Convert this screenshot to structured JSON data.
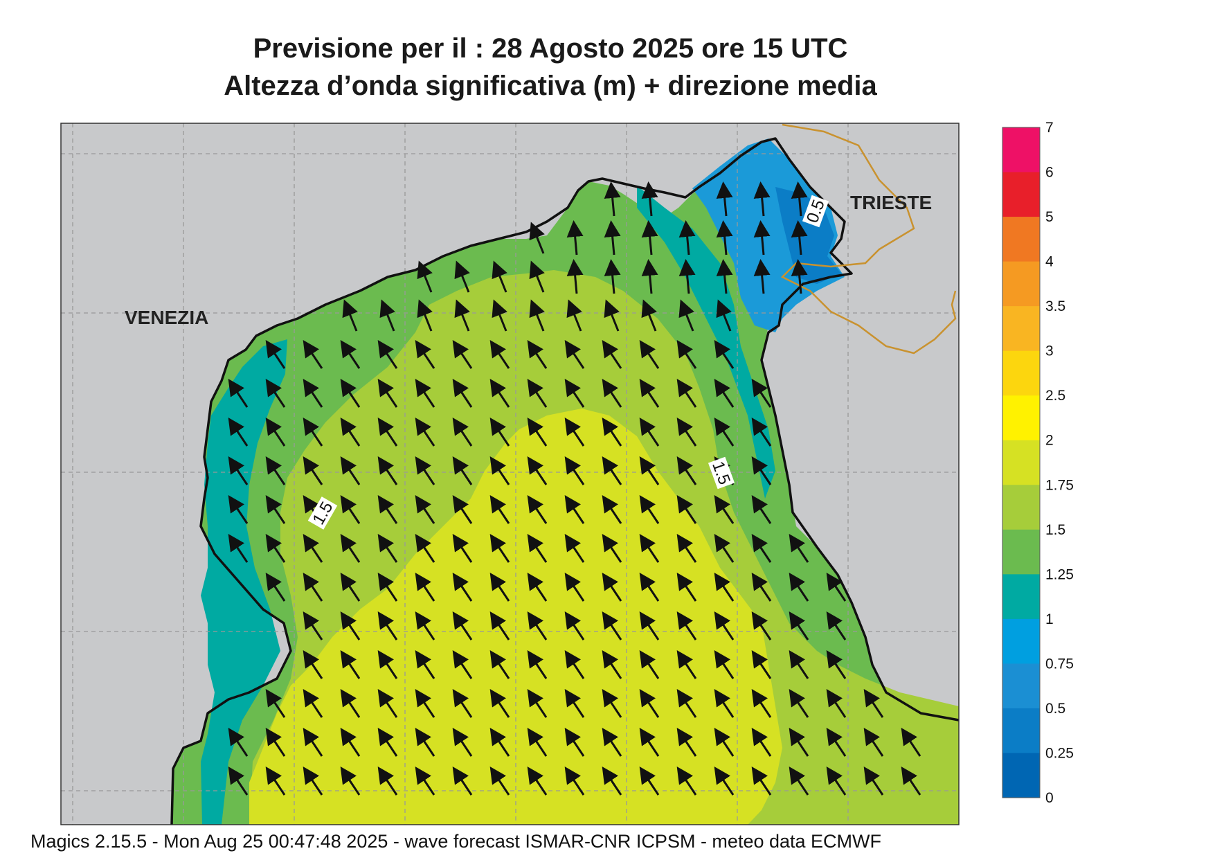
{
  "title": {
    "line1": "Previsione per il  :  28   Agosto  2025   ore 15 UTC",
    "line2": "Altezza d’onda significativa (m) + direzione media"
  },
  "map": {
    "cities": [
      {
        "name": "VENEZIA"
      },
      {
        "name": "TRIESTE"
      }
    ],
    "contour_labels": [
      "0.5",
      "1.5",
      "1.5"
    ],
    "arrow_direction": "north-west"
  },
  "colorbar": {
    "ticks": [
      "7",
      "6",
      "5",
      "4",
      "3.5",
      "3",
      "2.5",
      "2",
      "1.75",
      "1.5",
      "1.25",
      "1",
      "0.75",
      "0.5",
      "0.25",
      "0"
    ],
    "colors": [
      "#ee1166",
      "#e81f2a",
      "#f07822",
      "#f59a22",
      "#f9b522",
      "#fcd60e",
      "#fff200",
      "#d6e123",
      "#a6cd3a",
      "#6bbb4f",
      "#00aaa2",
      "#009fe0",
      "#1b8fd3",
      "#0b7dc6",
      "#0066b3"
    ],
    "land_color": "#c8c9cb"
  },
  "footer": "Magics 2.15.5 - Mon Aug 25 00:47:48 2025 - wave forecast  ISMAR-CNR  ICPSM - meteo data   ECMWF"
}
